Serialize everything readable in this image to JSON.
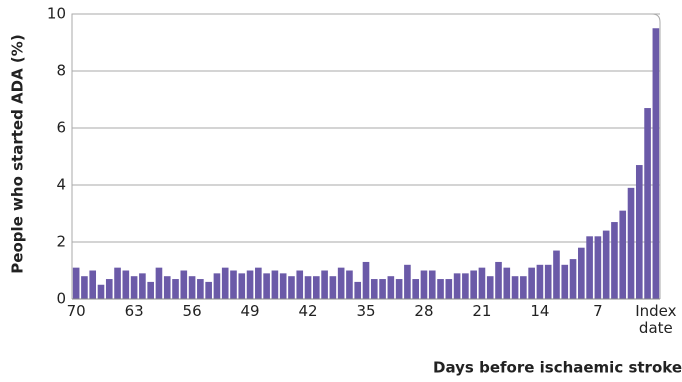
{
  "chart_data": {
    "type": "bar",
    "xlabel": "Days before ischaemic stroke",
    "ylabel": "People who started ADA (%)",
    "categories": [
      "70",
      null,
      null,
      null,
      null,
      null,
      null,
      "63",
      null,
      null,
      null,
      null,
      null,
      null,
      "56",
      null,
      null,
      null,
      null,
      null,
      null,
      "49",
      null,
      null,
      null,
      null,
      null,
      null,
      "42",
      null,
      null,
      null,
      null,
      null,
      null,
      "35",
      null,
      null,
      null,
      null,
      null,
      null,
      "28",
      null,
      null,
      null,
      null,
      null,
      null,
      "21",
      null,
      null,
      null,
      null,
      null,
      null,
      "14",
      null,
      null,
      null,
      null,
      null,
      null,
      "7",
      null,
      null,
      null,
      null,
      null,
      null,
      "Index date"
    ],
    "values": [
      1.1,
      0.8,
      1.0,
      0.5,
      0.7,
      1.1,
      1.0,
      0.8,
      0.9,
      0.6,
      1.1,
      0.8,
      0.7,
      1.0,
      0.8,
      0.7,
      0.6,
      0.9,
      1.1,
      1.0,
      0.9,
      1.0,
      1.1,
      0.9,
      1.0,
      0.9,
      0.8,
      1.0,
      0.8,
      0.8,
      1.0,
      0.8,
      1.1,
      1.0,
      0.6,
      1.3,
      0.7,
      0.7,
      0.8,
      0.7,
      1.2,
      0.7,
      1.0,
      1.0,
      0.7,
      0.7,
      0.9,
      0.9,
      1.0,
      1.1,
      0.8,
      1.3,
      1.1,
      0.8,
      0.8,
      1.1,
      1.2,
      1.2,
      1.7,
      1.2,
      1.4,
      1.8,
      2.2,
      2.2,
      2.4,
      2.7,
      3.1,
      3.9,
      4.7,
      6.7,
      9.5
    ],
    "color": "#6b5aa8",
    "ylim": [
      0,
      10
    ],
    "yticks": [
      0,
      2,
      4,
      6,
      8,
      10
    ],
    "grid": true
  }
}
